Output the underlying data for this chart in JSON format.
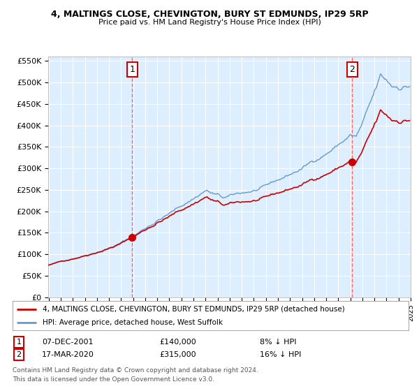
{
  "title1": "4, MALTINGS CLOSE, CHEVINGTON, BURY ST EDMUNDS, IP29 5RP",
  "title2": "Price paid vs. HM Land Registry's House Price Index (HPI)",
  "ylim": [
    0,
    560000
  ],
  "yticks": [
    0,
    50000,
    100000,
    150000,
    200000,
    250000,
    300000,
    350000,
    400000,
    450000,
    500000,
    550000
  ],
  "sale1_price": 140000,
  "sale2_price": 315000,
  "legend_property": "4, MALTINGS CLOSE, CHEVINGTON, BURY ST EDMUNDS, IP29 5RP (detached house)",
  "legend_hpi": "HPI: Average price, detached house, West Suffolk",
  "table_row1": [
    "1",
    "07-DEC-2001",
    "£140,000",
    "8% ↓ HPI"
  ],
  "table_row2": [
    "2",
    "17-MAR-2020",
    "£315,000",
    "16% ↓ HPI"
  ],
  "footer1": "Contains HM Land Registry data © Crown copyright and database right 2024.",
  "footer2": "This data is licensed under the Open Government Licence v3.0.",
  "property_color": "#cc0000",
  "hpi_color": "#6699cc",
  "vline_color": "#ff6666",
  "bg_color": "#ddeeff",
  "grid_color": "#ffffff"
}
